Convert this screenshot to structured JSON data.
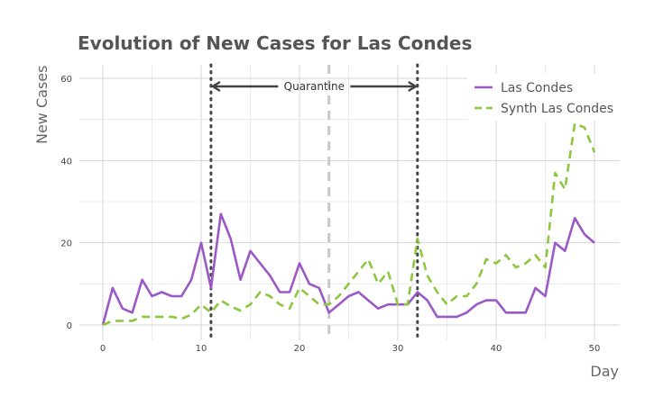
{
  "chart_data": {
    "type": "line",
    "title": "Evolution of New Cases for Las Condes",
    "xlabel": "Day",
    "ylabel": "New Cases",
    "xlim": [
      0,
      50
    ],
    "ylim": [
      0,
      60
    ],
    "xticks": [
      0,
      10,
      20,
      30,
      40,
      50
    ],
    "yticks": [
      0,
      20,
      40,
      60
    ],
    "grid": true,
    "legend_position": "top-right",
    "x": [
      0,
      1,
      2,
      3,
      4,
      5,
      6,
      7,
      8,
      9,
      10,
      11,
      12,
      13,
      14,
      15,
      16,
      17,
      18,
      19,
      20,
      21,
      22,
      23,
      24,
      25,
      26,
      27,
      28,
      29,
      30,
      31,
      32,
      33,
      34,
      35,
      36,
      37,
      38,
      39,
      40,
      41,
      42,
      43,
      44,
      45,
      46,
      47,
      48,
      49,
      50
    ],
    "series": [
      {
        "name": "Las Condes",
        "color": "#9b59c6",
        "style": "solid",
        "values": [
          0,
          9,
          4,
          3,
          11,
          7,
          8,
          7,
          7,
          11,
          20,
          9,
          27,
          21,
          11,
          18,
          15,
          12,
          8,
          8,
          15,
          10,
          9,
          3,
          5,
          7,
          8,
          6,
          4,
          5,
          5,
          5,
          8,
          6,
          2,
          2,
          2,
          3,
          5,
          6,
          6,
          3,
          3,
          3,
          9,
          7,
          20,
          18,
          26,
          22,
          20
        ]
      },
      {
        "name": "Synth Las Condes",
        "color": "#8dc63f",
        "style": "dashed",
        "values": [
          0,
          1,
          1,
          1,
          2,
          2,
          2,
          2,
          1.5,
          2.5,
          5,
          3,
          6,
          4.5,
          3.5,
          5,
          8,
          7,
          5,
          4,
          9,
          7,
          5,
          5,
          7,
          10,
          13,
          16,
          10,
          13,
          5,
          5,
          21,
          12,
          8,
          5,
          7,
          7,
          10,
          16,
          15,
          17,
          14,
          15,
          17,
          14,
          37,
          33,
          49,
          48,
          42
        ]
      }
    ],
    "vlines": [
      {
        "x": 11,
        "style": "dotted",
        "color": "#444444"
      },
      {
        "x": 23,
        "style": "dashed",
        "color": "#c8c8c8"
      },
      {
        "x": 32,
        "style": "dotted",
        "color": "#444444"
      }
    ],
    "annotation": {
      "text": "Quarantine",
      "from": 11,
      "to": 32,
      "y": 58
    }
  }
}
